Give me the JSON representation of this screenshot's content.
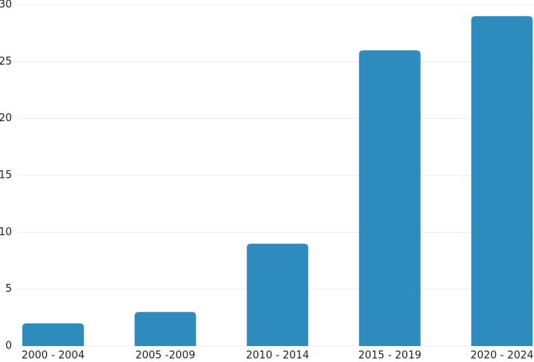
{
  "chart_data": {
    "type": "bar",
    "categories": [
      "2000 - 2004",
      "2005 -2009",
      "2010 - 2014",
      "2015 - 2019",
      "2020 - 2024"
    ],
    "values": [
      2,
      3,
      9,
      26,
      29
    ],
    "color": "#2e8bbd",
    "ylim": [
      0,
      30
    ],
    "yticks": [
      0,
      5,
      10,
      15,
      20,
      25,
      30
    ],
    "grid": true
  }
}
